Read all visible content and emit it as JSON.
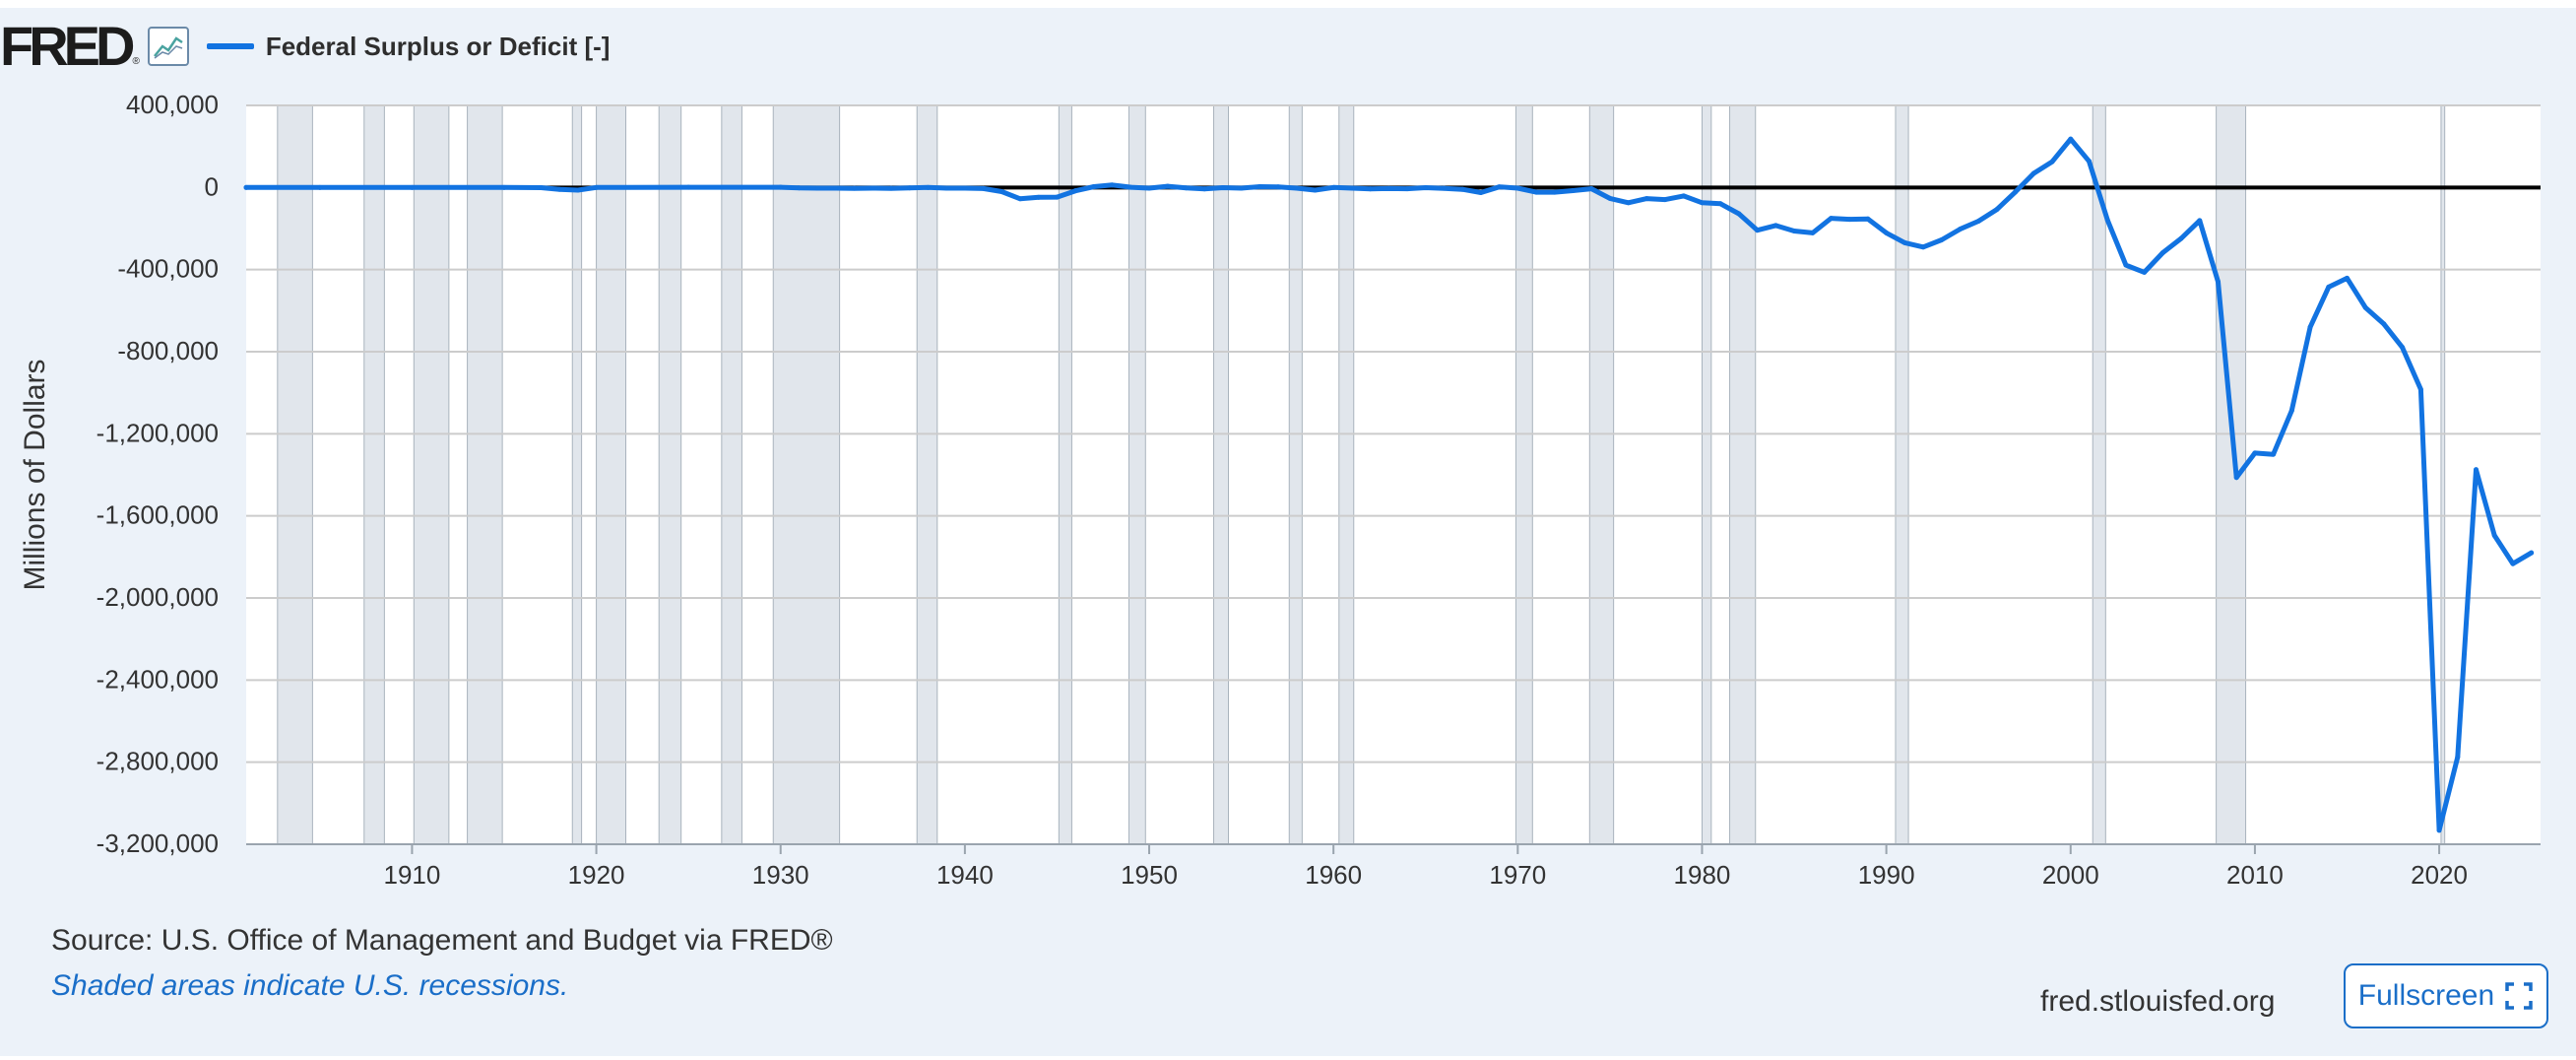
{
  "header": {
    "logo_text": "FRED",
    "logo_mark": "®",
    "chart_icon": "line-chart-icon"
  },
  "footer": {
    "source": "Source: U.S. Office of Management and Budget via FRED®",
    "note": "Shaded areas indicate U.S. recessions.",
    "site": "fred.stlouisfed.org",
    "fullscreen_label": "Fullscreen",
    "fullscreen_icon": "expand-icon"
  },
  "colors": {
    "series": "#1273e1",
    "recession": "#e1e6ec",
    "grid": "#cccccc",
    "zero_line": "#000000",
    "background": "#ecf2f9"
  },
  "chart_data": {
    "type": "line",
    "title": "",
    "xlabel": "",
    "ylabel": "Millions of Dollars",
    "grid": true,
    "legend_position": "top-left",
    "xlim": [
      1901,
      2025.5
    ],
    "ylim": [
      -3200000,
      400000
    ],
    "x_ticks": [
      1910,
      1920,
      1930,
      1940,
      1950,
      1960,
      1970,
      1980,
      1990,
      2000,
      2010,
      2020
    ],
    "y_ticks": [
      400000,
      0,
      -400000,
      -800000,
      -1200000,
      -1600000,
      -2000000,
      -2400000,
      -2800000,
      -3200000
    ],
    "y_tick_labels": [
      "400,000",
      "0",
      "-400,000",
      "-800,000",
      "-1,200,000",
      "-1,600,000",
      "-2,000,000",
      "-2,400,000",
      "-2,800,000",
      "-3,200,000"
    ],
    "recessions": [
      [
        1902.7,
        1904.6
      ],
      [
        1907.4,
        1908.5
      ],
      [
        1910.1,
        1912.0
      ],
      [
        1913.0,
        1914.9
      ],
      [
        1918.7,
        1919.2
      ],
      [
        1920.0,
        1921.6
      ],
      [
        1923.4,
        1924.6
      ],
      [
        1926.8,
        1927.9
      ],
      [
        1929.6,
        1933.2
      ],
      [
        1937.4,
        1938.5
      ],
      [
        1945.1,
        1945.8
      ],
      [
        1948.9,
        1949.8
      ],
      [
        1953.5,
        1954.3
      ],
      [
        1957.6,
        1958.3
      ],
      [
        1960.3,
        1961.1
      ],
      [
        1969.9,
        1970.8
      ],
      [
        1973.9,
        1975.2
      ],
      [
        1980.0,
        1980.5
      ],
      [
        1981.5,
        1982.9
      ],
      [
        1990.5,
        1991.2
      ],
      [
        2001.2,
        2001.9
      ],
      [
        2007.9,
        2009.5
      ],
      [
        2020.1,
        2020.3
      ]
    ],
    "series": [
      {
        "name": "Federal Surplus or Deficit [-]",
        "x": [
          1901,
          1905,
          1910,
          1915,
          1917,
          1918,
          1919,
          1920,
          1925,
          1930,
          1931,
          1932,
          1933,
          1934,
          1935,
          1936,
          1937,
          1938,
          1939,
          1940,
          1941,
          1942,
          1943,
          1944,
          1945,
          1946,
          1947,
          1948,
          1949,
          1950,
          1951,
          1952,
          1953,
          1954,
          1955,
          1956,
          1957,
          1958,
          1959,
          1960,
          1961,
          1962,
          1963,
          1964,
          1965,
          1966,
          1967,
          1968,
          1969,
          1970,
          1971,
          1972,
          1973,
          1974,
          1975,
          1976,
          1977,
          1978,
          1979,
          1980,
          1981,
          1982,
          1983,
          1984,
          1985,
          1986,
          1987,
          1988,
          1989,
          1990,
          1991,
          1992,
          1993,
          1994,
          1995,
          1996,
          1997,
          1998,
          1999,
          2000,
          2001,
          2002,
          2003,
          2004,
          2005,
          2006,
          2007,
          2008,
          2009,
          2010,
          2011,
          2012,
          2013,
          2014,
          2015,
          2016,
          2017,
          2018,
          2019,
          2020,
          2021,
          2022,
          2023,
          2024,
          2025
        ],
        "values": [
          0,
          0,
          0,
          0,
          -1000,
          -9000,
          -13000,
          0,
          1000,
          1000,
          -2000,
          -3000,
          -3000,
          -4000,
          -3000,
          -4000,
          -2000,
          0,
          -3000,
          -3000,
          -5000,
          -20000,
          -55000,
          -48000,
          -47000,
          -16000,
          4000,
          12000,
          1000,
          -3000,
          6000,
          -2000,
          -7000,
          -1000,
          -3000,
          4000,
          3000,
          -3000,
          -13000,
          0,
          -3000,
          -7000,
          -5000,
          -6000,
          -1000,
          -4000,
          -9000,
          -25000,
          3000,
          -3000,
          -23000,
          -23000,
          -15000,
          -6000,
          -53000,
          -74000,
          -54000,
          -59000,
          -41000,
          -74000,
          -79000,
          -128000,
          -208000,
          -185000,
          -212000,
          -221000,
          -150000,
          -155000,
          -153000,
          -221000,
          -269000,
          -290000,
          -255000,
          -203000,
          -164000,
          -107000,
          -22000,
          69000,
          126000,
          236000,
          128000,
          -158000,
          -378000,
          -413000,
          -318000,
          -248000,
          -161000,
          -459000,
          -1413000,
          -1294000,
          -1300000,
          -1087000,
          -680000,
          -485000,
          -442000,
          -585000,
          -665000,
          -779000,
          -984000,
          -3132000,
          -2775000,
          -1375000,
          -1695000,
          -1833000,
          -1780000
        ]
      }
    ]
  }
}
